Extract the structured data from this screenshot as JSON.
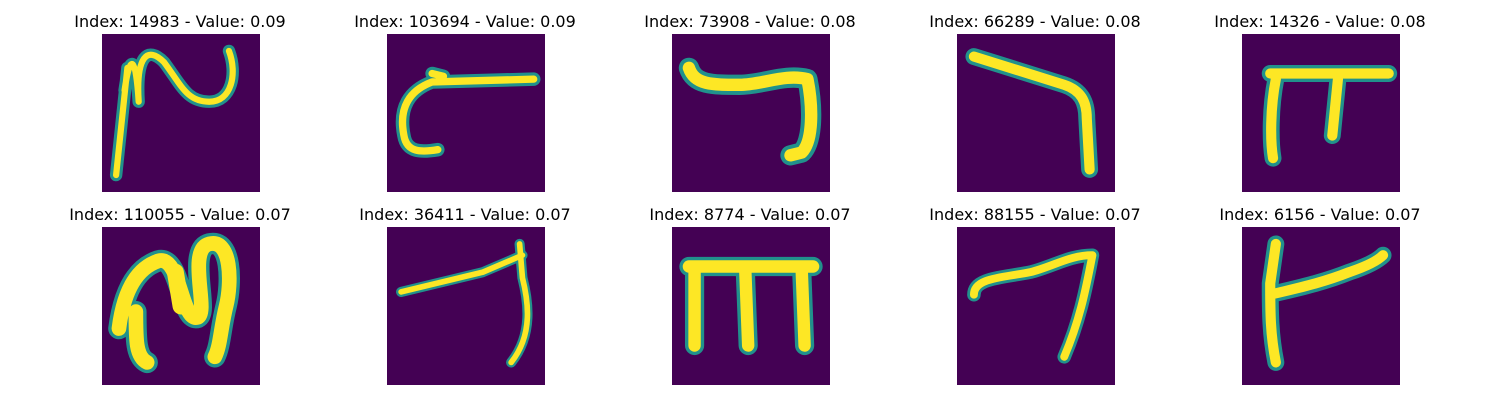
{
  "colors": {
    "background": "#440154",
    "stroke_core": "#fde725",
    "stroke_edge": "#21918c",
    "stroke_mid": "#5ec962"
  },
  "grid": {
    "tiles": [
      {
        "title": "Index: 14983 - Value: 0.09"
      },
      {
        "title": "Index: 103694 - Value: 0.09"
      },
      {
        "title": "Index: 73908 - Value: 0.08"
      },
      {
        "title": "Index: 66289 - Value: 0.08"
      },
      {
        "title": "Index: 14326 - Value: 0.08"
      },
      {
        "title": "Index: 110055 - Value: 0.07"
      },
      {
        "title": "Index: 36411 - Value: 0.07"
      },
      {
        "title": "Index: 8774 - Value: 0.07"
      },
      {
        "title": "Index: 88155 - Value: 0.07"
      },
      {
        "title": "Index: 6156 - Value: 0.07"
      }
    ]
  }
}
